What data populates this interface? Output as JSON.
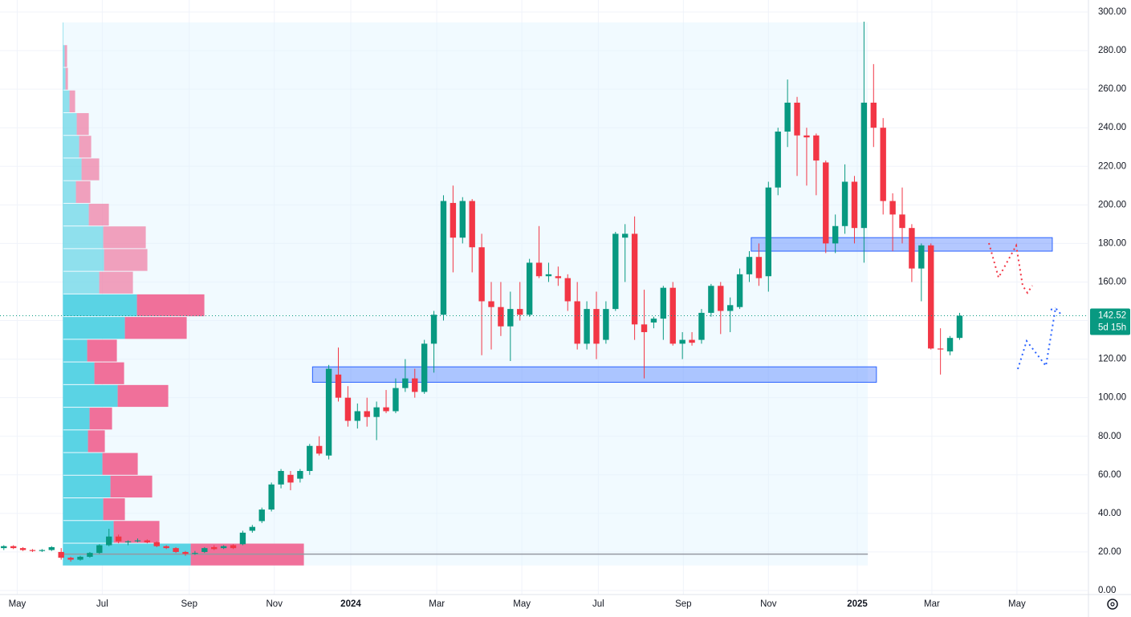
{
  "chart_data": {
    "type": "candlestick",
    "up_color": "#089981",
    "down_color": "#f23645",
    "open": [
      22,
      23,
      22,
      21,
      20.5,
      21,
      20,
      17,
      16,
      17.5,
      19.5,
      23.5,
      28,
      25,
      25.5,
      26,
      25,
      23,
      22,
      20,
      19,
      20,
      22.5,
      22,
      23.5,
      24,
      31,
      36,
      42,
      55,
      60,
      58,
      62,
      75,
      70,
      112,
      100,
      88,
      93,
      90,
      95,
      93,
      105,
      110,
      103,
      128,
      143,
      201,
      183,
      202,
      178,
      150,
      147,
      137,
      146,
      143,
      170,
      163,
      163,
      162,
      150,
      128,
      146,
      130,
      146,
      183,
      185,
      138,
      139,
      141,
      157,
      128,
      130,
      130,
      144,
      158,
      145,
      147,
      164,
      173,
      163,
      209,
      238,
      253,
      236,
      236,
      222,
      180,
      189,
      212,
      188,
      253,
      240,
      202,
      195,
      188,
      167,
      179,
      125.5,
      124,
      131
    ],
    "high": [
      23.5,
      23.5,
      22.5,
      21.5,
      21.5,
      23,
      22,
      17.5,
      18,
      20,
      24,
      32,
      29,
      26,
      27,
      26.5,
      25.5,
      23.5,
      22.5,
      20.5,
      20.5,
      22.5,
      23.5,
      23.5,
      24,
      31,
      34,
      43,
      56,
      63,
      62,
      63,
      76,
      80,
      117,
      126,
      106,
      97,
      100,
      98,
      104,
      110,
      120,
      115,
      130,
      145,
      205,
      210,
      204,
      203,
      185,
      160,
      160,
      155,
      160,
      172,
      189,
      170,
      168,
      164,
      160,
      150,
      155,
      150,
      186,
      190,
      194,
      156,
      142,
      158,
      160,
      134,
      134,
      146,
      159,
      160,
      152,
      167,
      176,
      180,
      212,
      240,
      265,
      256,
      240,
      237,
      223,
      195,
      221,
      215,
      295,
      273,
      245,
      206,
      209,
      190,
      180,
      180,
      136,
      132,
      144
    ],
    "low": [
      21,
      21.5,
      20.5,
      20,
      20,
      20.5,
      16,
      15,
      15.5,
      17,
      19,
      23,
      24.5,
      23.5,
      25,
      24.5,
      22.5,
      21.5,
      19.5,
      18,
      18.5,
      19.5,
      21,
      21.5,
      21.5,
      23.5,
      30,
      35,
      41,
      53,
      52,
      56,
      60,
      70,
      68,
      98,
      85,
      84,
      85,
      78,
      92,
      92,
      103,
      100,
      102,
      113,
      140,
      165,
      180,
      165,
      122,
      125,
      132,
      119,
      140,
      142,
      162,
      160,
      158,
      145,
      125,
      125,
      120,
      128,
      145,
      160,
      130,
      110,
      136,
      130,
      127,
      120,
      127,
      128,
      142,
      133,
      134,
      146,
      160,
      158,
      155,
      205,
      230,
      215,
      210,
      205,
      175,
      175,
      185,
      180,
      170,
      230,
      195,
      176,
      180,
      160,
      150,
      125,
      112,
      122,
      130
    ],
    "close": [
      23,
      22,
      21,
      20.5,
      21,
      22.5,
      17,
      16,
      17.5,
      19.5,
      23.5,
      28,
      25.5,
      25.5,
      26,
      25,
      23,
      22,
      20,
      19,
      19.5,
      22,
      21.5,
      23,
      22,
      30,
      33,
      42,
      55,
      62,
      56,
      62,
      75,
      71,
      115,
      100,
      88,
      93,
      90,
      95,
      93,
      105,
      110,
      103,
      128,
      143,
      202,
      183,
      202,
      178,
      150,
      147,
      137,
      146,
      143,
      170,
      163,
      164,
      162,
      150,
      128,
      146,
      128,
      146,
      185,
      185,
      138,
      134,
      141,
      157,
      128,
      130,
      128.5,
      144,
      158,
      145,
      148,
      164,
      173,
      162,
      209,
      238,
      253,
      236,
      235,
      223,
      180,
      189,
      212,
      188,
      253,
      240,
      202,
      195,
      188,
      167,
      179,
      125.5,
      125,
      131,
      142.52
    ],
    "ylim": [
      0,
      300
    ],
    "yticks": [
      {
        "value": 0,
        "label": "0.00"
      },
      {
        "value": 20,
        "label": "20.00"
      },
      {
        "value": 40,
        "label": "40.00"
      },
      {
        "value": 60,
        "label": "60.00"
      },
      {
        "value": 80,
        "label": "80.00"
      },
      {
        "value": 100,
        "label": "100.00"
      },
      {
        "value": 120,
        "label": "120.00"
      },
      {
        "value": 140,
        "label": "140.00"
      },
      {
        "value": 160,
        "label": "160.00"
      },
      {
        "value": 180,
        "label": "180.00"
      },
      {
        "value": 200,
        "label": "200.00"
      },
      {
        "value": 220,
        "label": "220.00"
      },
      {
        "value": 240,
        "label": "240.00"
      },
      {
        "value": 260,
        "label": "260.00"
      },
      {
        "value": 280,
        "label": "280.00"
      },
      {
        "value": 300,
        "label": "300.00"
      }
    ],
    "xlim": [
      -0.4,
      113.4
    ],
    "xticks": [
      {
        "value": 1.4,
        "label": "May"
      },
      {
        "value": 10.3,
        "label": "Jul"
      },
      {
        "value": 19.4,
        "label": "Sep"
      },
      {
        "value": 28.3,
        "label": "Nov"
      },
      {
        "value": 36.3,
        "label": "2024"
      },
      {
        "value": 45.3,
        "label": "Mar"
      },
      {
        "value": 54.2,
        "label": "May"
      },
      {
        "value": 62.2,
        "label": "Jul"
      },
      {
        "value": 71.1,
        "label": "Sep"
      },
      {
        "value": 80.0,
        "label": "Nov"
      },
      {
        "value": 89.3,
        "label": "2025"
      },
      {
        "value": 97.1,
        "label": "Mar"
      },
      {
        "value": 106.0,
        "label": "May"
      }
    ],
    "grid": true,
    "last_price": 142.52,
    "countdown": "5d 15h",
    "volume_profile": {
      "bins": [
        13,
        24.75,
        36.5,
        48.25,
        60,
        71.75,
        83.5,
        95.25,
        107,
        118.75,
        130.5,
        142.25,
        154,
        165.75,
        177.5,
        189.25,
        201,
        212.75,
        224.5,
        236.25,
        248,
        259.75,
        271.5,
        283.25
      ],
      "up": [
        159,
        63,
        50,
        59,
        49,
        31,
        33,
        68,
        39,
        30,
        77,
        92,
        45,
        51,
        50,
        32,
        16,
        23,
        20,
        17,
        8,
        3,
        2
      ],
      "down": [
        141,
        57,
        27,
        52,
        44,
        21,
        28,
        63,
        37,
        37,
        77,
        84,
        42,
        54,
        53,
        25,
        18,
        22,
        15,
        15,
        7,
        3,
        3
      ],
      "up_color": "#5ad3e4",
      "down_color": "#f0709a"
    },
    "zones": [
      {
        "low": 108,
        "high": 116,
        "start": 32.3,
        "end": 91.3
      },
      {
        "low": 176,
        "high": 183,
        "start": 78.2,
        "end": 109.7
      }
    ]
  }
}
